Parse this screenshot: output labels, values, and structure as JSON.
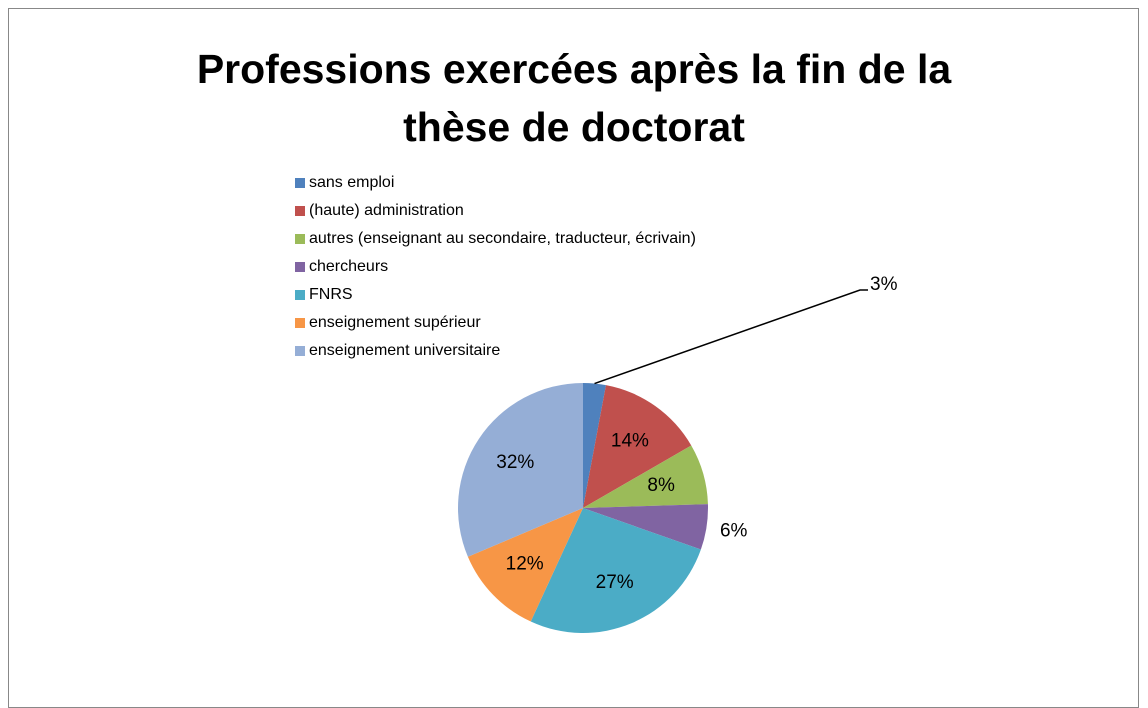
{
  "chart_data": {
    "type": "pie",
    "title": "Professions exercées après la fin de la thèse de doctorat",
    "categories": [
      "sans emploi",
      "(haute) administration",
      "autres (enseignant au secondaire, traducteur, écrivain)",
      "chercheurs",
      "FNRS",
      "enseignement supérieur",
      "enseignement universitaire"
    ],
    "values": [
      3,
      14,
      8,
      6,
      27,
      12,
      32
    ],
    "value_labels": [
      "3%",
      "14%",
      "8%",
      "6%",
      "27%",
      "12%",
      "32%"
    ],
    "colors": [
      "#4f81bd",
      "#c0504d",
      "#9bbb59",
      "#8064a2",
      "#4bacc6",
      "#f79646",
      "#95aed6"
    ],
    "legend": "top"
  }
}
